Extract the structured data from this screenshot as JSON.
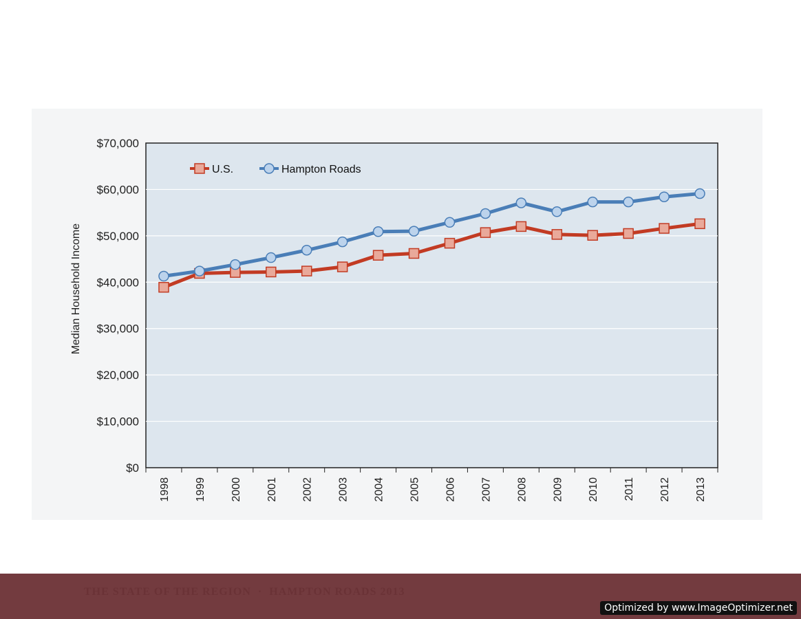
{
  "footer": {
    "running_title": "THE STATE OF THE REGION  ·  HAMPTON ROADS 2013",
    "watermark": "Optimized by www.ImageOptimizer.net"
  },
  "colors": {
    "us_line": "#c23b23",
    "us_marker": "#e9a99a",
    "hr_line": "#4a7eb7",
    "hr_marker": "#bcd3ec",
    "plot_bg": "#dde6ee",
    "footer_band": "#733b3f"
  },
  "chart_data": {
    "type": "line",
    "title": "",
    "xlabel": "",
    "ylabel": "Median Household Income",
    "categories": [
      "1998",
      "1999",
      "2000",
      "2001",
      "2002",
      "2003",
      "2004",
      "2005",
      "2006",
      "2007",
      "2008",
      "2009",
      "2010",
      "2011",
      "2012",
      "2013"
    ],
    "ylim": [
      0,
      70000
    ],
    "yticks": [
      0,
      10000,
      20000,
      30000,
      40000,
      50000,
      60000,
      70000
    ],
    "ytick_labels": [
      "$0",
      "$10,000",
      "$20,000",
      "$30,000",
      "$40,000",
      "$50,000",
      "$60,000",
      "$70,000"
    ],
    "grid": true,
    "legend": "top-left",
    "series": [
      {
        "name": "U.S.",
        "marker": "square",
        "values": [
          38900,
          41900,
          42100,
          42200,
          42400,
          43300,
          45800,
          46200,
          48400,
          50700,
          52000,
          50300,
          50100,
          50500,
          51600,
          52600
        ]
      },
      {
        "name": "Hampton Roads",
        "marker": "circle",
        "values": [
          41300,
          42400,
          43800,
          45300,
          46900,
          48700,
          50900,
          51000,
          52900,
          54800,
          57100,
          55200,
          57300,
          57300,
          58400,
          59100
        ]
      }
    ]
  }
}
